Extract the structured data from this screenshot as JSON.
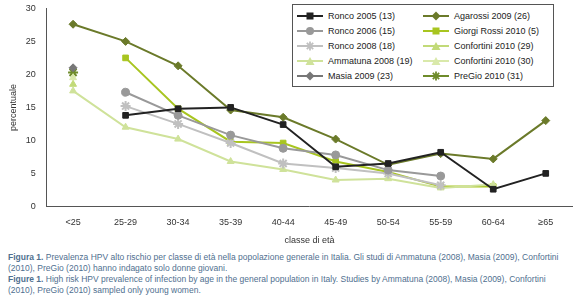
{
  "chart_data": {
    "type": "line",
    "x_label": "classe di età",
    "y_label": "percentuale",
    "categories": [
      "<25",
      "25-29",
      "30-34",
      "35-39",
      "40-44",
      "45-49",
      "50-54",
      "55-59",
      "60-64",
      "≥65"
    ],
    "ylim": [
      0,
      30
    ],
    "yticks": [
      0,
      5,
      10,
      15,
      20,
      25,
      30
    ],
    "grid": false,
    "legend": "upper right",
    "series": [
      {
        "name": "Ronco 2005 (13)",
        "color": "#222222",
        "marker": "square",
        "values": [
          null,
          13.8,
          14.8,
          15.0,
          12.4,
          6.0,
          6.5,
          8.2,
          2.6,
          5.0
        ]
      },
      {
        "name": "Ronco 2006 (15)",
        "color": "#999999",
        "marker": "circle",
        "values": [
          null,
          17.3,
          13.8,
          10.8,
          8.8,
          7.8,
          5.5,
          4.6,
          null,
          null
        ]
      },
      {
        "name": "Ronco 2008 (18)",
        "color": "#c0c0c0",
        "marker": "star",
        "values": [
          null,
          15.2,
          12.5,
          9.6,
          6.5,
          5.8,
          5.0,
          3.2,
          null,
          null
        ]
      },
      {
        "name": "Ammatuna 2008 (19)",
        "color": "#cfe29a",
        "marker": "triangle",
        "values": [
          17.5,
          12.0,
          10.2,
          6.8,
          5.6,
          4.0,
          4.2,
          2.8,
          3.3,
          null
        ]
      },
      {
        "name": "Masia 2009 (23)",
        "color": "#777777",
        "marker": "diamond",
        "values": [
          21.0,
          null,
          null,
          null,
          null,
          null,
          null,
          null,
          null,
          null
        ]
      },
      {
        "name": "Agarossi 2009 (26)",
        "color": "#6b7a2a",
        "marker": "diamond",
        "values": [
          27.6,
          25.0,
          21.3,
          14.6,
          13.5,
          10.2,
          6.3,
          8.0,
          7.2,
          13.0
        ]
      },
      {
        "name": "Giorgi Rossi 2010 (5)",
        "color": "#a8c520",
        "marker": "square",
        "values": [
          null,
          22.5,
          14.8,
          9.8,
          9.6,
          6.8,
          5.2,
          3.0,
          3.0,
          null
        ]
      },
      {
        "name": "Confortini 2010 (29)",
        "color": "#c2da78",
        "marker": "triangle",
        "values": [
          18.5,
          null,
          null,
          null,
          null,
          null,
          null,
          null,
          null,
          null
        ]
      },
      {
        "name": "Confortini 2010 (30)",
        "color": "#d9e9aa",
        "marker": "triangle",
        "values": [
          19.5,
          null,
          null,
          null,
          null,
          null,
          null,
          null,
          null,
          null
        ]
      },
      {
        "name": "PreGio 2010 (31)",
        "color": "#6e8b2a",
        "marker": "star",
        "values": [
          20.3,
          null,
          null,
          null,
          null,
          null,
          null,
          null,
          null,
          null
        ]
      }
    ],
    "caption": [
      {
        "label": "Figura 1.",
        "text": "Prevalenza HPV alto rischio per classe di età nella popolazione generale in Italia. Gli studi di Ammatuna (2008), Masia (2009), Confortini (2010), PreGio (2010) hanno indagato solo donne giovani."
      },
      {
        "label": "Figure 1.",
        "text": "High risk HPV prevalence of infection by age in the general population in Italy. Studies by Ammatuna (2008), Masia (2009), Confortini (2010), PreGio (2010) sampled only young women."
      }
    ]
  }
}
